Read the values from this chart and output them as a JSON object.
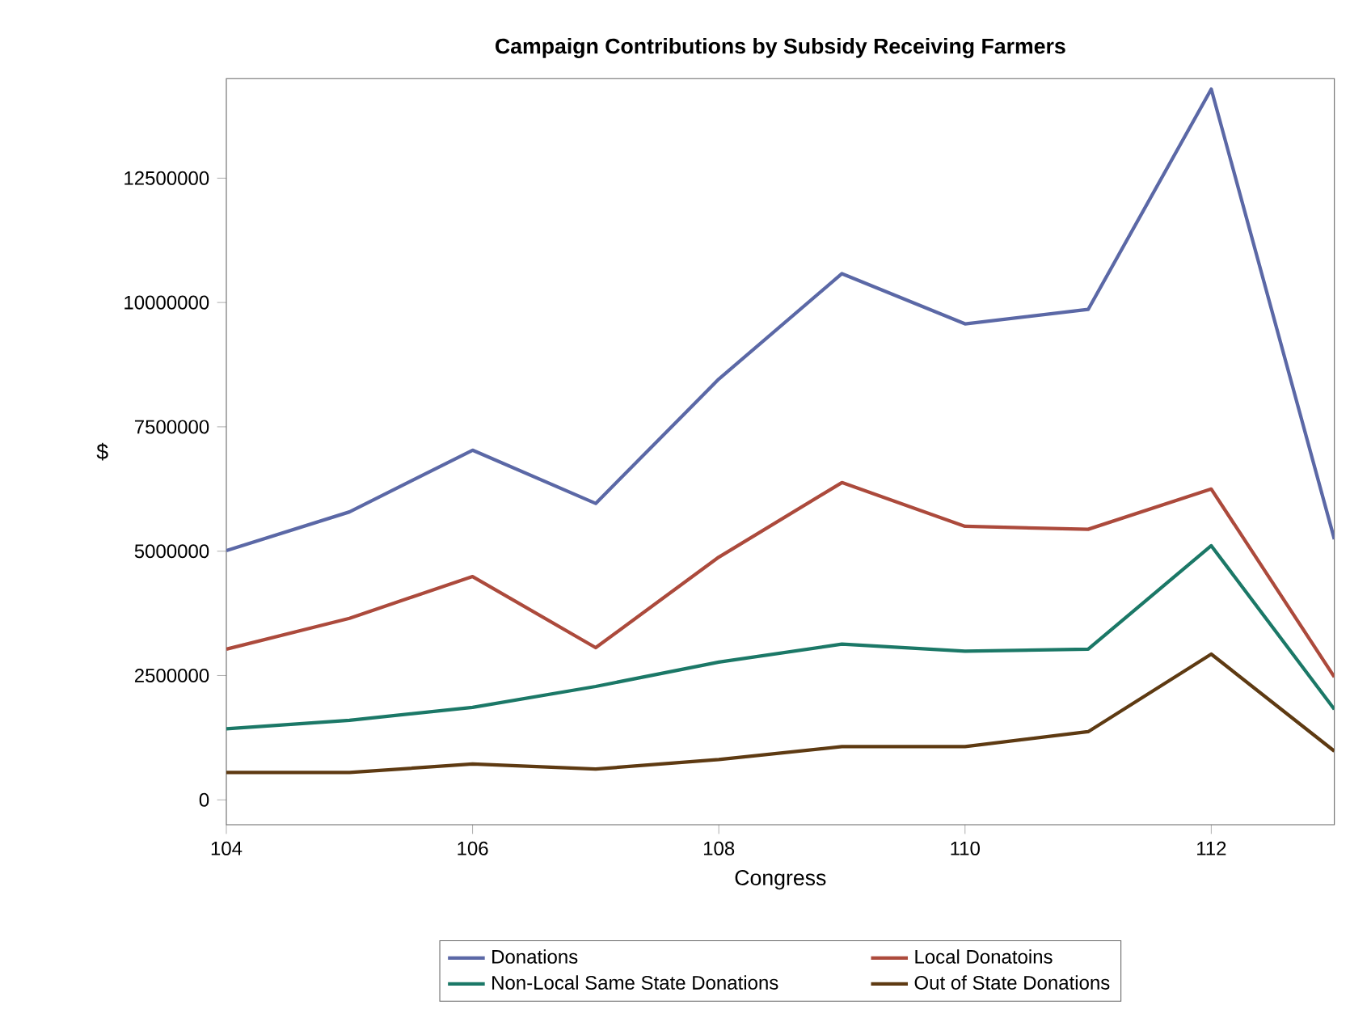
{
  "chart_data": {
    "type": "line",
    "title": "Campaign Contributions by Subsidy Receiving Farmers",
    "xlabel": "Congress",
    "ylabel": "$",
    "x": [
      104,
      105,
      106,
      107,
      108,
      109,
      110,
      111,
      112,
      113
    ],
    "xlim": [
      104,
      113
    ],
    "xticks": [
      104,
      106,
      108,
      110,
      112
    ],
    "ylim": [
      -500000,
      14500000
    ],
    "yticks": [
      0,
      2500000,
      5000000,
      7500000,
      10000000,
      12500000
    ],
    "grid": false,
    "legend": "bottom",
    "marker": "none",
    "line_style": "solid",
    "series": [
      {
        "name": "Donations",
        "color": "#5b68a6",
        "values": [
          5010000,
          5790000,
          7030000,
          5960000,
          8460000,
          10580000,
          9570000,
          9860000,
          14290000,
          5240000
        ]
      },
      {
        "name": "Local Donatoins",
        "color": "#ac4a3c",
        "values": [
          3030000,
          3650000,
          4490000,
          3060000,
          4880000,
          6380000,
          5500000,
          5440000,
          6250000,
          2470000
        ]
      },
      {
        "name": "Non-Local Same State Donations",
        "color": "#1b7867",
        "values": [
          1430000,
          1600000,
          1860000,
          2280000,
          2770000,
          3130000,
          2990000,
          3030000,
          5110000,
          1820000
        ]
      },
      {
        "name": "Out of State Donations",
        "color": "#5e3a12",
        "values": [
          550000,
          550000,
          720000,
          620000,
          810000,
          1070000,
          1070000,
          1370000,
          2930000,
          980000
        ]
      }
    ]
  }
}
